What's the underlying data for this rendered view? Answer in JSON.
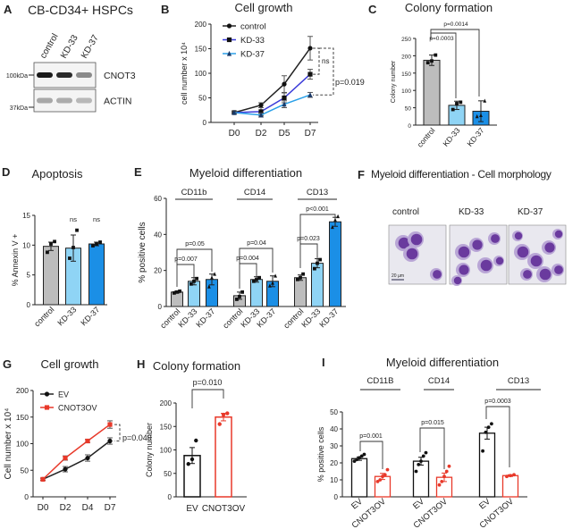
{
  "panels": {
    "A": {
      "label": "A",
      "title": "CB-CD34+ HSPCs",
      "lanes": [
        "control",
        "KD-33",
        "KD-37"
      ],
      "blots": [
        "CNOT3",
        "ACTIN"
      ],
      "markers": [
        "100kDa",
        "37kDa"
      ]
    },
    "B": {
      "label": "B",
      "title": "Cell growth"
    },
    "C": {
      "label": "C",
      "title": "Colony formation"
    },
    "D": {
      "label": "D",
      "title": "Apoptosis"
    },
    "E": {
      "label": "E",
      "title": "Myeloid differentiation"
    },
    "F": {
      "label": "F",
      "title": "Myeloid differentiation - Cell morphology",
      "images": [
        "control",
        "KD-33",
        "KD-37"
      ],
      "scale_bar": "20 µm"
    },
    "G": {
      "label": "G",
      "title": "Cell growth"
    },
    "H": {
      "label": "H",
      "title": "Colony formation"
    },
    "I": {
      "label": "I",
      "title": "Myeloid differentiation"
    }
  },
  "colors": {
    "control": "#bdbdbd",
    "KD-33": "#8fd4f5",
    "KD-37": "#1b8fe6",
    "EV": "#111111",
    "CNOT3OV": "#e8392a",
    "KD-33_line": "#3b3bd9",
    "KD-37_line": "#2aa0e8"
  },
  "chart_data": [
    {
      "id": "B",
      "type": "line",
      "title": "Cell growth",
      "ylabel": "cell number x 10⁴",
      "x": [
        "D0",
        "D2",
        "D5",
        "D7"
      ],
      "ylim": [
        0,
        200
      ],
      "yticks": [
        0,
        50,
        100,
        150,
        200
      ],
      "legend": "top-left",
      "series": [
        {
          "name": "control",
          "values": [
            20,
            35,
            78,
            151
          ],
          "errors": [
            2,
            5,
            17,
            24
          ],
          "marker": "circle"
        },
        {
          "name": "KD-33",
          "values": [
            20,
            22,
            50,
            98
          ],
          "errors": [
            2,
            8,
            10,
            10
          ],
          "marker": "square"
        },
        {
          "name": "KD-37",
          "values": [
            20,
            15,
            37,
            56
          ],
          "errors": [
            2,
            4,
            7,
            5
          ],
          "marker": "triangle"
        }
      ],
      "annotations": [
        "ns",
        "p=0.019"
      ]
    },
    {
      "id": "C",
      "type": "bar",
      "title": "Colony formation",
      "ylabel": "Colony number",
      "categories": [
        "control",
        "KD-33",
        "KD-37"
      ],
      "values": [
        187,
        57,
        40
      ],
      "errors": [
        15,
        12,
        30
      ],
      "points": [
        [
          180,
          185,
          202
        ],
        [
          45,
          62,
          66
        ],
        [
          25,
          28,
          70
        ]
      ],
      "ylim": [
        0,
        250
      ],
      "yticks": [
        0,
        50,
        100,
        150,
        200,
        250
      ],
      "annotations": [
        "p=0.0003",
        "p=0.0014"
      ]
    },
    {
      "id": "D",
      "type": "bar",
      "title": "Apoptosis",
      "ylabel": "% Annexin V +",
      "categories": [
        "control",
        "KD-33",
        "KD-37"
      ],
      "values": [
        9.8,
        9.5,
        10.2
      ],
      "errors": [
        0.7,
        2.2,
        0.3
      ],
      "points": [
        [
          8.8,
          10.2,
          10.6
        ],
        [
          7.8,
          9.6,
          12.5
        ],
        [
          9.9,
          10.2,
          10.5
        ]
      ],
      "ylim": [
        0,
        15
      ],
      "yticks": [
        0,
        5,
        10,
        15
      ],
      "annotations": [
        "ns",
        "ns"
      ]
    },
    {
      "id": "E",
      "type": "bar",
      "title": "Myeloid differentiation",
      "ylabel": "% positive cells",
      "groups": [
        "CD11b",
        "CD14",
        "CD13"
      ],
      "categories": [
        "control",
        "KD-33",
        "KD-37",
        "control",
        "KD-33",
        "KD-37",
        "control",
        "KD-33",
        "KD-37"
      ],
      "values": [
        8,
        14,
        15,
        6,
        15,
        14,
        16,
        24,
        47
      ],
      "errors": [
        0.5,
        2,
        3,
        2,
        1.5,
        3,
        1.5,
        2.5,
        2.5
      ],
      "points": [
        [
          7.5,
          8,
          8.5
        ],
        [
          12.5,
          14,
          15.5
        ],
        [
          11,
          16,
          18
        ],
        [
          4,
          5.5,
          8
        ],
        [
          14,
          15,
          16
        ],
        [
          11.5,
          13,
          17
        ],
        [
          15,
          16,
          18
        ],
        [
          21,
          24,
          26
        ],
        [
          44,
          48,
          50
        ]
      ],
      "ylim": [
        0,
        60
      ],
      "yticks": [
        0,
        20,
        40,
        60
      ],
      "annotations": [
        "p=0.007",
        "p=0.05",
        "p=0.004",
        "p=0.04",
        "p=0.023",
        "p<0.001"
      ]
    },
    {
      "id": "G",
      "type": "line",
      "title": "Cell growth",
      "ylabel": "Cell number x 10⁴",
      "x": [
        "D0",
        "D2",
        "D4",
        "D7"
      ],
      "ylim": [
        0,
        200
      ],
      "yticks": [
        0,
        50,
        100,
        150,
        200
      ],
      "legend": "top-left",
      "series": [
        {
          "name": "EV",
          "values": [
            33,
            52,
            73,
            105
          ],
          "errors": [
            2,
            5,
            6,
            6
          ],
          "marker": "circle"
        },
        {
          "name": "CNOT3OV",
          "values": [
            33,
            73,
            105,
            136
          ],
          "errors": [
            2,
            4,
            3,
            7
          ],
          "marker": "square"
        }
      ],
      "annotations": [
        "p=0.049"
      ]
    },
    {
      "id": "H",
      "type": "bar",
      "title": "Colony formation",
      "ylabel": "Colony number",
      "categories": [
        "EV",
        "CNOT3OV"
      ],
      "values": [
        88,
        170
      ],
      "errors": [
        17,
        8
      ],
      "points": [
        [
          70,
          80,
          120
        ],
        [
          155,
          175,
          178
        ]
      ],
      "ylim": [
        0,
        200
      ],
      "yticks": [
        0,
        50,
        100,
        150,
        200
      ],
      "annotations": [
        "p=0.010"
      ]
    },
    {
      "id": "I",
      "type": "bar",
      "title": "Myeloid differentiation",
      "ylabel": "% positive cells",
      "groups": [
        "CD11B",
        "CD14",
        "CD13"
      ],
      "categories": [
        "EV",
        "CNOT3OV",
        "EV",
        "CNOT3OV",
        "EV",
        "CNOT3OV"
      ],
      "values": [
        22.5,
        12,
        21,
        11.5,
        37.5,
        12.5
      ],
      "errors": [
        1,
        1.8,
        2.3,
        2.5,
        3.5,
        0.5
      ],
      "points": [
        [
          21,
          22,
          23,
          24,
          25
        ],
        [
          9,
          10,
          12,
          13,
          16
        ],
        [
          15,
          19,
          21,
          24,
          26
        ],
        [
          7,
          9,
          12,
          15,
          18
        ],
        [
          27,
          38,
          41,
          43
        ],
        [
          12,
          12.5,
          13
        ]
      ],
      "ylim": [
        0,
        50
      ],
      "yticks": [
        0,
        10,
        20,
        30,
        40,
        50
      ],
      "annotations": [
        "p=0.001",
        "p=0.015",
        "p=0.0003"
      ]
    }
  ]
}
